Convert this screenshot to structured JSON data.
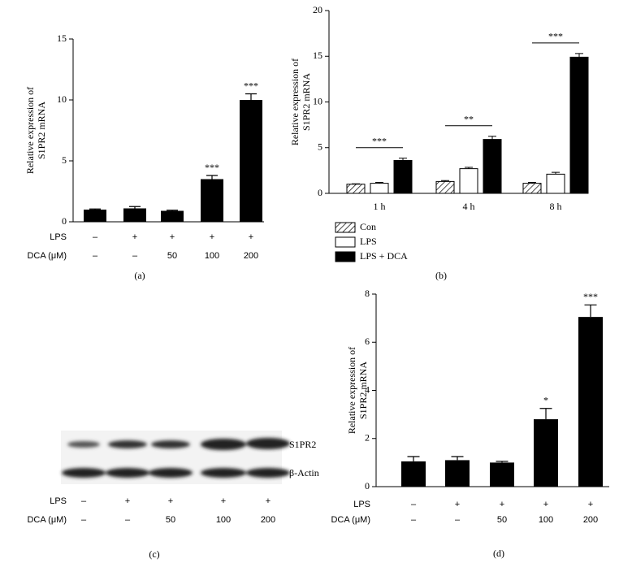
{
  "chart_data": [
    {
      "type": "bar",
      "panel": "(a)",
      "ylabel": [
        "Relative expression of",
        "S1PR2 mRNA"
      ],
      "conditions": [
        {
          "label": "LPS",
          "values": [
            "–",
            "+",
            "+",
            "+",
            "+"
          ]
        },
        {
          "label": "DCA (μM)",
          "values": [
            "–",
            "–",
            "50",
            "100",
            "200"
          ]
        }
      ],
      "values": [
        1.0,
        1.1,
        0.9,
        3.5,
        10.0
      ],
      "errors": [
        0.05,
        0.15,
        0.05,
        0.3,
        0.5
      ],
      "significance": [
        null,
        null,
        null,
        "***",
        "***"
      ],
      "color": "#000000",
      "ylim": [
        0,
        15
      ],
      "yticks": [
        0,
        5,
        10,
        15
      ]
    },
    {
      "type": "grouped_bar",
      "panel": "(b)",
      "ylabel": [
        "Relative expression of",
        "S1PR2 mRNA"
      ],
      "categories": [
        "1 h",
        "4 h",
        "8 h"
      ],
      "series": [
        {
          "name": "Con",
          "color": "#ffffff",
          "hatch": true,
          "values": [
            1.0,
            1.3,
            1.1
          ],
          "errors": [
            0.05,
            0.1,
            0.1
          ]
        },
        {
          "name": "LPS",
          "color": "#ffffff",
          "values": [
            1.1,
            2.7,
            2.1
          ],
          "errors": [
            0.1,
            0.15,
            0.2
          ]
        },
        {
          "name": "LPS + DCA",
          "color": "#000000",
          "values": [
            3.6,
            5.9,
            14.9
          ],
          "errors": [
            0.25,
            0.35,
            0.4
          ]
        }
      ],
      "significance": [
        "***",
        "**",
        "***"
      ],
      "ylim": [
        0,
        20
      ],
      "yticks": [
        0,
        5,
        10,
        15,
        20
      ]
    },
    {
      "type": "bar",
      "panel": "(d)",
      "ylabel": [
        "Relative expression of",
        "S1PR2 mRNA"
      ],
      "conditions": [
        {
          "label": "LPS",
          "values": [
            "–",
            "+",
            "+",
            "+",
            "+"
          ]
        },
        {
          "label": "DCA (μM)",
          "values": [
            "–",
            "–",
            "50",
            "100",
            "200"
          ]
        }
      ],
      "values": [
        1.05,
        1.1,
        1.0,
        2.8,
        7.05
      ],
      "errors": [
        0.2,
        0.15,
        0.05,
        0.45,
        0.5
      ],
      "significance": [
        null,
        null,
        null,
        "*",
        "***"
      ],
      "color": "#000000",
      "ylim": [
        0,
        8
      ],
      "yticks": [
        0,
        2,
        4,
        6,
        8
      ]
    }
  ],
  "blot": {
    "panel": "(c)",
    "bands": [
      "S1PR2",
      "β-Actin"
    ],
    "conditions": [
      {
        "label": "LPS",
        "values": [
          "–",
          "+",
          "+",
          "+",
          "+"
        ]
      },
      {
        "label": "DCA (μM)",
        "values": [
          "–",
          "–",
          "50",
          "100",
          "200"
        ]
      }
    ]
  }
}
